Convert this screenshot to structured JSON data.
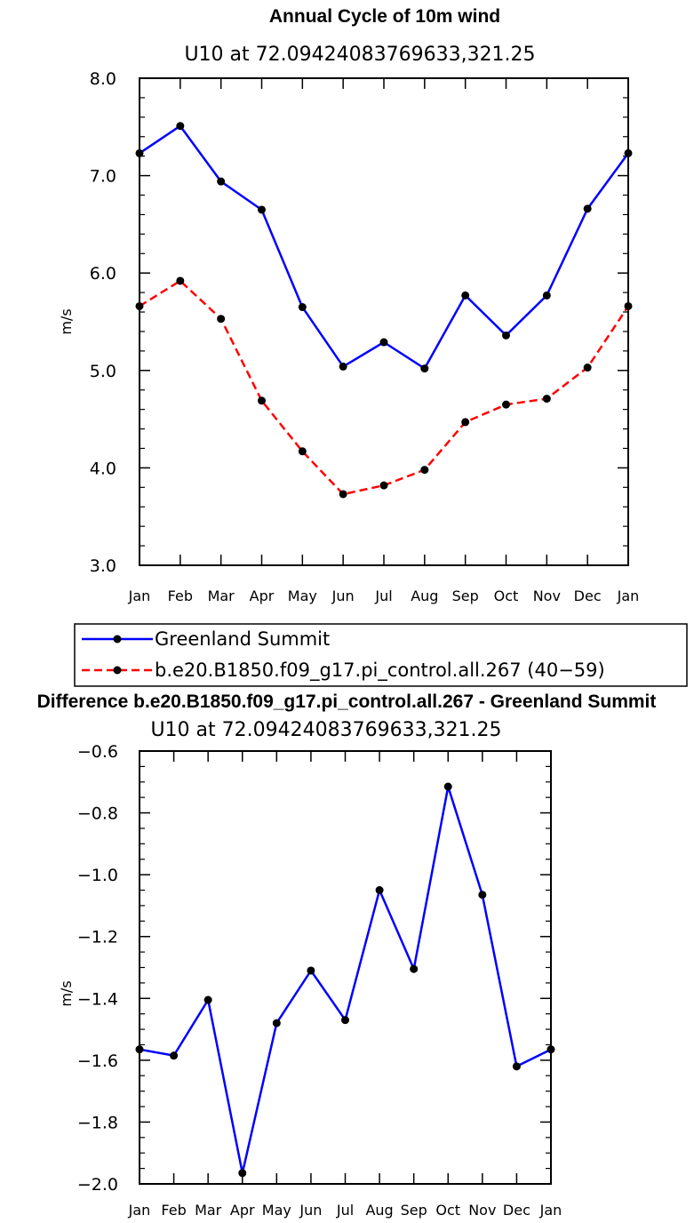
{
  "chart_data": [
    {
      "type": "line",
      "title": "Annual Cycle of 10m wind",
      "subtitle": "U10 at 72.09424083769633,321.25",
      "ylabel": "m/s",
      "ylim": [
        3.0,
        8.0
      ],
      "yticks": [
        "3.0",
        "4.0",
        "5.0",
        "6.0",
        "7.0",
        "8.0"
      ],
      "categories": [
        "Jan",
        "Feb",
        "Mar",
        "Apr",
        "May",
        "Jun",
        "Jul",
        "Aug",
        "Sep",
        "Oct",
        "Nov",
        "Dec",
        "Jan"
      ],
      "series": [
        {
          "name": "Greenland Summit",
          "color": "#0000ff",
          "dash": "solid",
          "values": [
            7.23,
            7.51,
            6.94,
            6.65,
            5.65,
            5.04,
            5.29,
            5.02,
            5.77,
            5.36,
            5.77,
            6.66,
            7.23
          ]
        },
        {
          "name": "b.e20.B1850.f09_g17.pi_control.all.267 (40−59)",
          "color": "#ff0000",
          "dash": "dashed",
          "values": [
            5.66,
            5.92,
            5.53,
            4.69,
            4.17,
            3.73,
            3.82,
            3.98,
            4.47,
            4.65,
            4.71,
            5.03,
            5.66
          ]
        }
      ]
    },
    {
      "type": "line",
      "title": "Difference b.e20.B1850.f09_g17.pi_control.all.267 - Greenland Summit",
      "subtitle": "U10 at 72.09424083769633,321.25",
      "ylabel": "m/s",
      "ylim": [
        -2.0,
        -0.6
      ],
      "yticks": [
        "−2.0",
        "−1.8",
        "−1.6",
        "−1.4",
        "−1.2",
        "−1.0",
        "−0.8",
        "−0.6"
      ],
      "categories": [
        "Jan",
        "Feb",
        "Mar",
        "Apr",
        "May",
        "Jun",
        "Jul",
        "Aug",
        "Sep",
        "Oct",
        "Nov",
        "Dec",
        "Jan"
      ],
      "series": [
        {
          "name": "Difference",
          "color": "#0000ff",
          "dash": "solid",
          "values": [
            -1.565,
            -1.585,
            -1.405,
            -1.965,
            -1.48,
            -1.31,
            -1.47,
            -1.05,
            -1.305,
            -0.715,
            -1.065,
            -1.62,
            -1.565
          ]
        }
      ]
    }
  ]
}
